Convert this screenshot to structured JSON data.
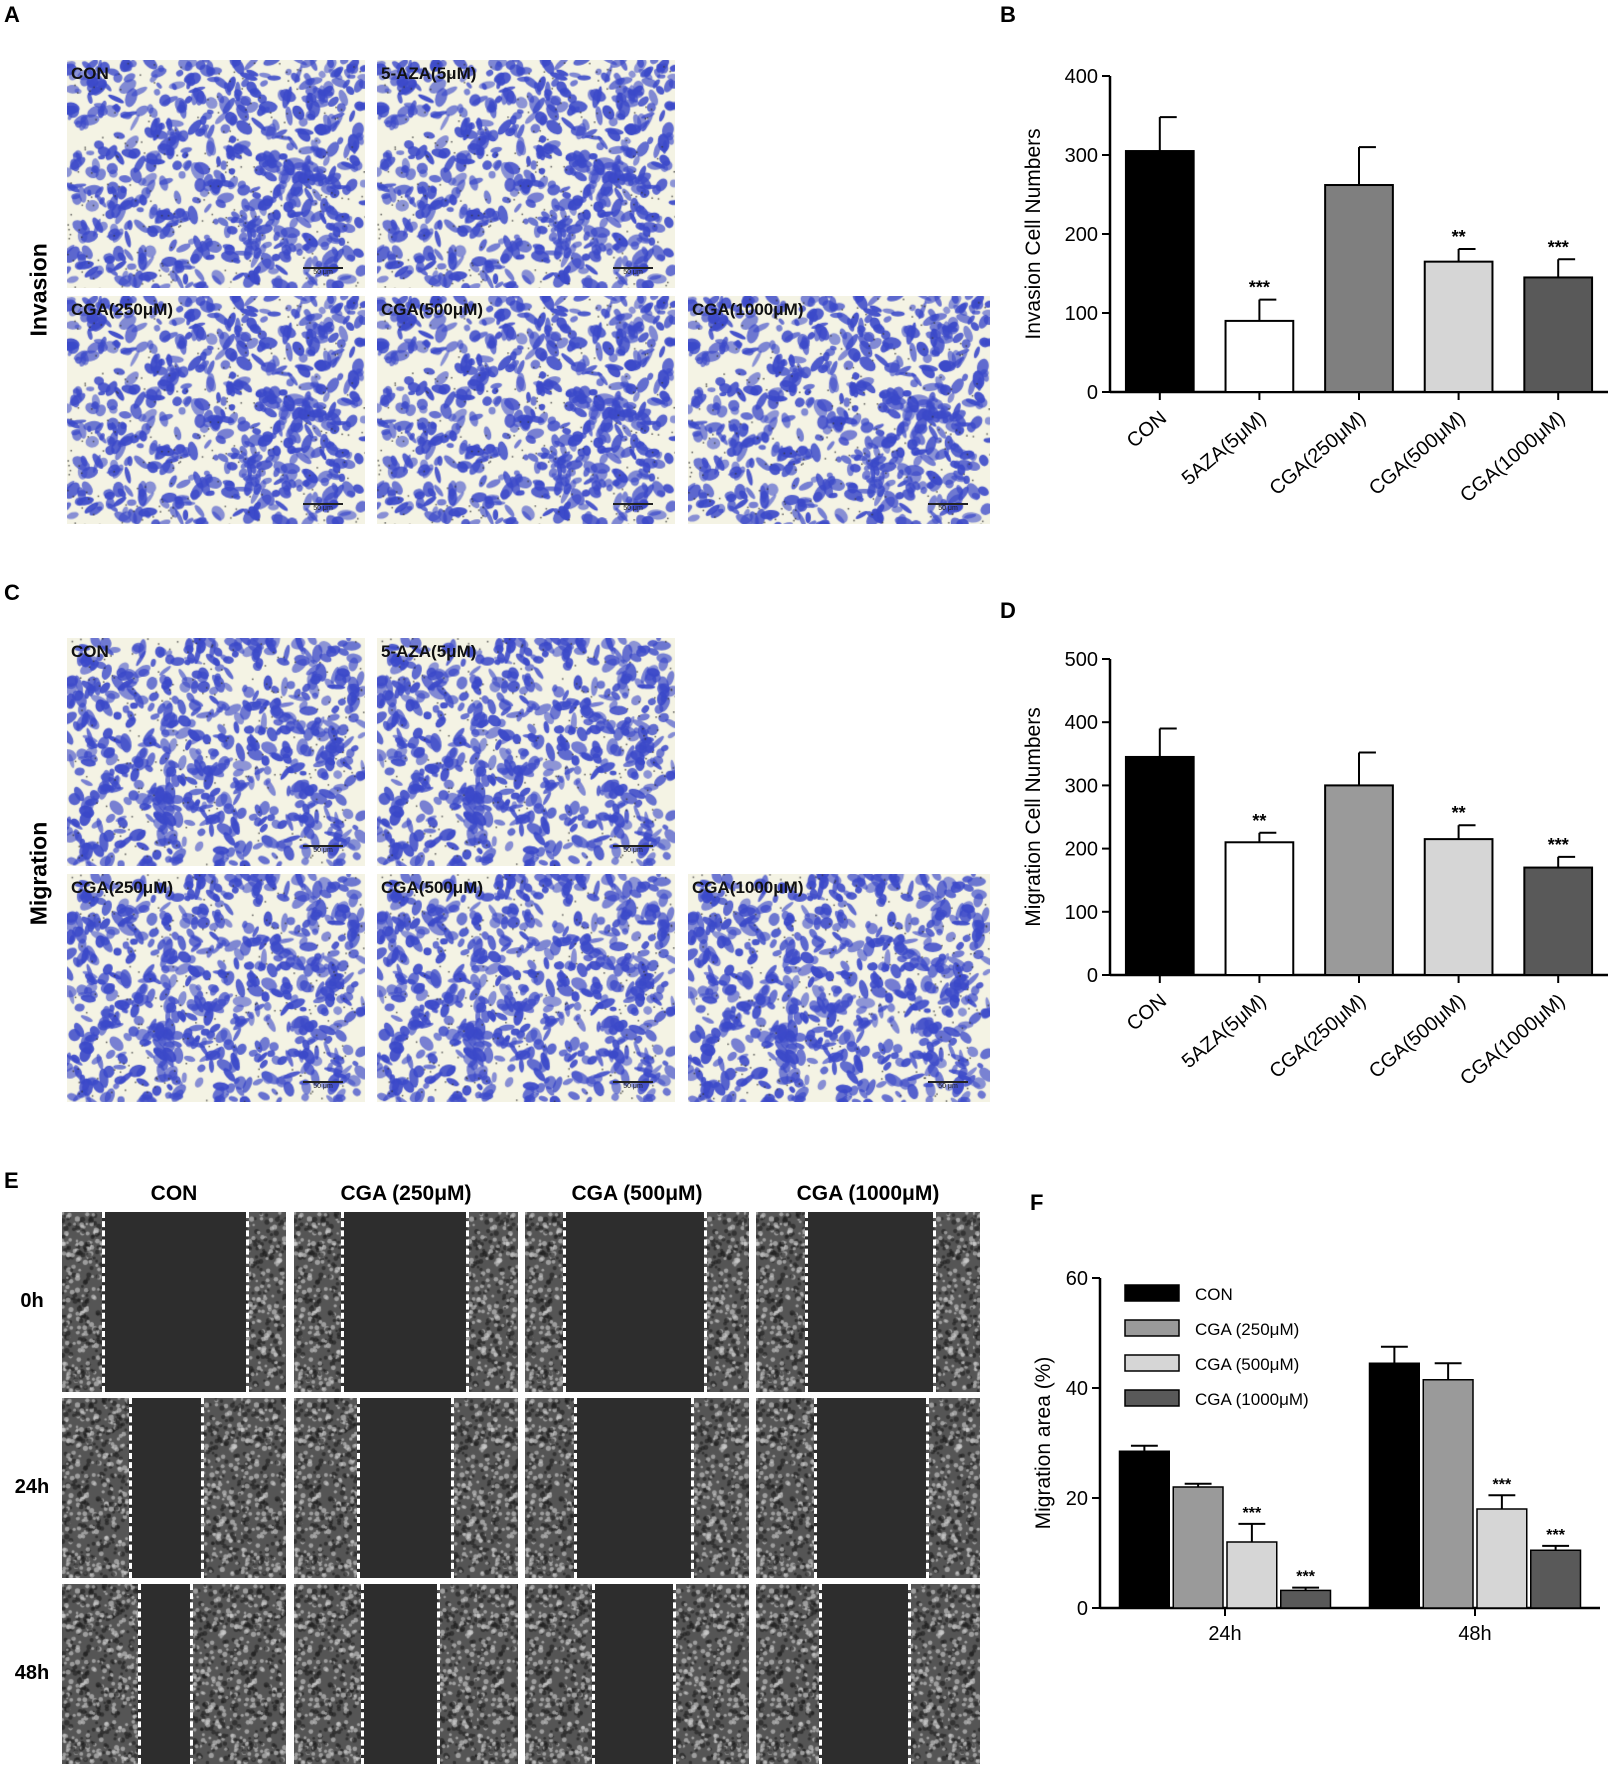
{
  "panels": {
    "A": "A",
    "B": "B",
    "C": "C",
    "D": "D",
    "E": "E",
    "F": "F"
  },
  "row_labels": {
    "invasion": "Invasion",
    "migration": "Migration"
  },
  "transwell_labels": {
    "invasion": [
      "CON",
      "5-AZA(5μM)",
      "CGA(250μM)",
      "CGA(500μM)",
      "CGA(1000μM)"
    ],
    "migration": [
      "CON",
      "5-AZA(5μM)",
      "CGA(250μM)",
      "CGA(500μM)",
      "CGA(1000μM)"
    ]
  },
  "scalebar_text": "50 μm",
  "wound": {
    "headers": [
      "CON",
      "CGA (250μM)",
      "CGA (500μM)",
      "CGA (1000μM)"
    ],
    "times": [
      "0h",
      "24h",
      "48h"
    ]
  },
  "colors": {
    "black": "#000000",
    "white": "#ffffff",
    "gray": "#7f7f7f",
    "lightgray": "#d6d6d6",
    "darkgray": "#595959",
    "stain_blue": "#3b49c9"
  },
  "chart_data": [
    {
      "id": "B",
      "type": "bar",
      "ylabel": "Invasion Cell Numbers",
      "ylim": [
        0,
        400
      ],
      "yticks": [
        0,
        100,
        200,
        300,
        400
      ],
      "categories": [
        "CON",
        "5AZA(5μM)",
        "CGA(250μM)",
        "CGA(500μM)",
        "CGA(1000μM)"
      ],
      "values": [
        305,
        90,
        262,
        165,
        145
      ],
      "errors": [
        43,
        27,
        48,
        16,
        23
      ],
      "significance": [
        "",
        "***",
        "",
        "**",
        "***"
      ],
      "fills": [
        "#000000",
        "#ffffff",
        "#7f7f7f",
        "#d6d6d6",
        "#595959"
      ]
    },
    {
      "id": "D",
      "type": "bar",
      "ylabel": "Migration Cell Numbers",
      "ylim": [
        0,
        500
      ],
      "yticks": [
        0,
        100,
        200,
        300,
        400,
        500
      ],
      "categories": [
        "CON",
        "5AZA(5μM)",
        "CGA(250μM)",
        "CGA(500μM)",
        "CGA(1000μM)"
      ],
      "values": [
        345,
        210,
        300,
        215,
        170
      ],
      "errors": [
        45,
        15,
        52,
        22,
        17
      ],
      "significance": [
        "",
        "**",
        "",
        "**",
        "***"
      ],
      "fills": [
        "#000000",
        "#ffffff",
        "#9a9a9a",
        "#d6d6d6",
        "#595959"
      ]
    },
    {
      "id": "F",
      "type": "bar",
      "ylabel": "Migration area (%)",
      "ylim": [
        0,
        60
      ],
      "yticks": [
        0,
        20,
        40,
        60
      ],
      "categories": [
        "24h",
        "48h"
      ],
      "series": [
        {
          "name": "CON",
          "values": [
            28.5,
            44.5
          ],
          "errors": [
            1.0,
            3.0
          ],
          "significance": [
            "",
            ""
          ],
          "fill": "#000000"
        },
        {
          "name": "CGA (250μM)",
          "values": [
            22,
            41.5
          ],
          "errors": [
            0.6,
            3.0
          ],
          "significance": [
            "",
            ""
          ],
          "fill": "#9a9a9a"
        },
        {
          "name": "CGA (500μM)",
          "values": [
            12,
            18
          ],
          "errors": [
            3.3,
            2.5
          ],
          "significance": [
            "***",
            "***"
          ],
          "fill": "#d6d6d6"
        },
        {
          "name": "CGA (1000μM)",
          "values": [
            3.2,
            10.5
          ],
          "errors": [
            0.5,
            0.8
          ],
          "significance": [
            "***",
            "***"
          ],
          "fill": "#595959"
        }
      ],
      "legend_position": "top-left"
    }
  ]
}
